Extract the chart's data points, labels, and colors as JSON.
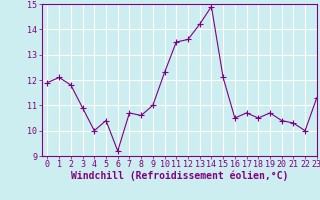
{
  "x": [
    0,
    1,
    2,
    3,
    4,
    5,
    6,
    7,
    8,
    9,
    10,
    11,
    12,
    13,
    14,
    15,
    16,
    17,
    18,
    19,
    20,
    21,
    22,
    23
  ],
  "y": [
    11.9,
    12.1,
    11.8,
    10.9,
    10.0,
    10.4,
    9.2,
    10.7,
    10.6,
    11.0,
    12.3,
    13.5,
    13.6,
    14.2,
    14.9,
    12.1,
    10.5,
    10.7,
    10.5,
    10.7,
    10.4,
    10.3,
    10.0,
    11.3
  ],
  "line_color": "#800080",
  "marker": "D",
  "marker_size": 2,
  "bg_color": "#cceef0",
  "grid_color": "#ffffff",
  "xlabel": "Windchill (Refroidissement éolien,°C)",
  "xlabel_color": "#800080",
  "tick_color": "#800080",
  "ylim": [
    9,
    15
  ],
  "xlim": [
    -0.5,
    23
  ],
  "yticks": [
    9,
    10,
    11,
    12,
    13,
    14,
    15
  ],
  "xticks": [
    0,
    1,
    2,
    3,
    4,
    5,
    6,
    7,
    8,
    9,
    10,
    11,
    12,
    13,
    14,
    15,
    16,
    17,
    18,
    19,
    20,
    21,
    22,
    23
  ],
  "xtick_labels": [
    "0",
    "1",
    "2",
    "3",
    "4",
    "5",
    "6",
    "7",
    "8",
    "9",
    "10",
    "11",
    "12",
    "13",
    "14",
    "15",
    "16",
    "17",
    "18",
    "19",
    "20",
    "21",
    "22",
    "23"
  ],
  "ytick_labels": [
    "9",
    "10",
    "11",
    "12",
    "13",
    "14",
    "15"
  ],
  "font_size": 6,
  "xlabel_font_size": 7
}
